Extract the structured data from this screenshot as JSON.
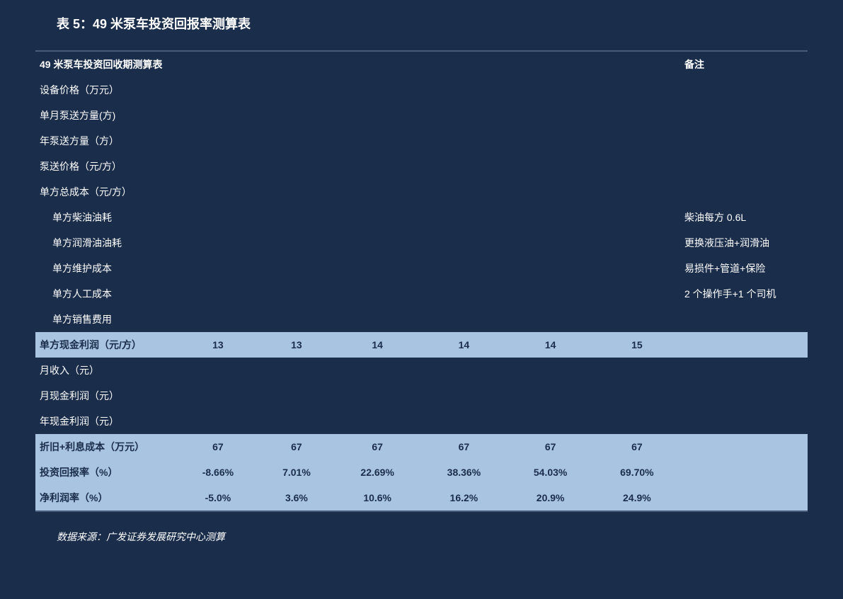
{
  "title": "表 5：49 米泵车投资回报率测算表",
  "source": "数据来源：广发证券发展研究中心测算",
  "header": {
    "col0": "49 米泵车投资回收期测算表",
    "remark": "备注"
  },
  "rows": {
    "r1": {
      "label": "设备价格（万元）",
      "remark": ""
    },
    "r2": {
      "label": "单月泵送方量(方)",
      "remark": ""
    },
    "r3": {
      "label": "年泵送方量（方）",
      "remark": ""
    },
    "r4": {
      "label": "泵送价格（元/方）",
      "remark": ""
    },
    "r5": {
      "label": "单方总成本（元/方）",
      "remark": ""
    },
    "r6": {
      "label": "单方柴油油耗",
      "remark": "柴油每方 0.6L"
    },
    "r7": {
      "label": "单方润滑油油耗",
      "remark": "更换液压油+润滑油"
    },
    "r8": {
      "label": "单方维护成本",
      "remark": "易损件+管道+保险"
    },
    "r9": {
      "label": "单方人工成本",
      "remark": "2 个操作手+1 个司机"
    },
    "r10": {
      "label": "单方销售费用",
      "remark": ""
    },
    "r11": {
      "label": "单方现金利润（元/方）",
      "v1": "13",
      "v2": "13",
      "v3": "14",
      "v4": "14",
      "v5": "14",
      "v6": "15",
      "remark": ""
    },
    "r12": {
      "label": "月收入（元）",
      "remark": ""
    },
    "r13": {
      "label": "月现金利润（元）",
      "remark": ""
    },
    "r14": {
      "label": "年现金利润（元）",
      "remark": ""
    },
    "r15": {
      "label": "折旧+利息成本（万元）",
      "v1": "67",
      "v2": "67",
      "v3": "67",
      "v4": "67",
      "v5": "67",
      "v6": "67",
      "remark": ""
    },
    "r16": {
      "label": "投资回报率（%）",
      "v1": "-8.66%",
      "v2": "7.01%",
      "v3": "22.69%",
      "v4": "38.36%",
      "v5": "54.03%",
      "v6": "69.70%",
      "remark": ""
    },
    "r17": {
      "label": "净利润率（%）",
      "v1": "-5.0%",
      "v2": "3.6%",
      "v3": "10.6%",
      "v4": "16.2%",
      "v5": "20.9%",
      "v6": "24.9%",
      "remark": ""
    }
  }
}
